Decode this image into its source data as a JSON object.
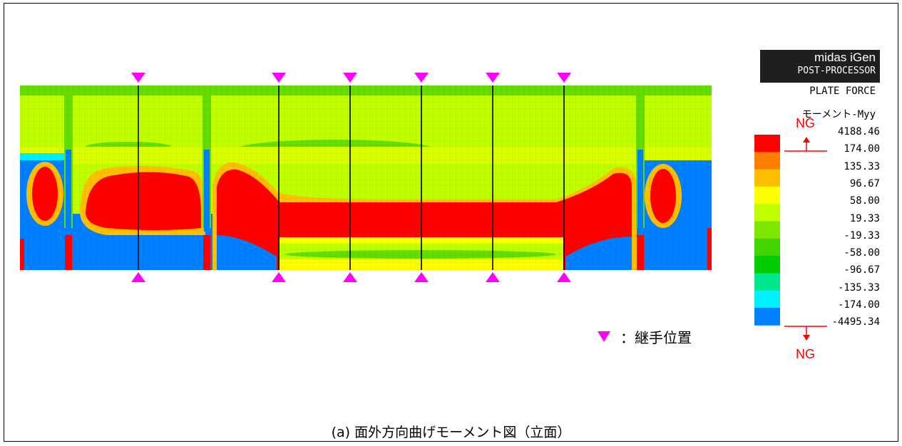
{
  "caption": "(a) 面外方向曲げモーメント図（立面）",
  "joint_legend": {
    "label": "：継手位置",
    "marker_color": "#ff00ff"
  },
  "postprocessor": {
    "brand": "midas iGen",
    "module": "POST-PROCESSOR",
    "title": "PLATE FORCE",
    "component": "モーメント-Myy"
  },
  "legend": {
    "ticks": [
      "4188.46",
      "174.00",
      "135.33",
      "96.67",
      "58.00",
      "19.33",
      "-19.33",
      "-58.00",
      "-96.67",
      "-135.33",
      "-174.00",
      "-4495.34"
    ],
    "colors": [
      "#ff0000",
      "#ff7f00",
      "#ffbf00",
      "#ffff00",
      "#bfff00",
      "#7fe600",
      "#40d400",
      "#00cc00",
      "#00e68c",
      "#00f0ff",
      "#0080ff"
    ],
    "ng_upper": "NG",
    "ng_lower": "NG",
    "ng_color": "#ff0000"
  },
  "contour_colors": {
    "red": "#ff0000",
    "orange": "#ff8000",
    "yellow": "#ffff00",
    "lightgreen": "#bfff00",
    "green": "#66dd00",
    "darkgreen": "#33cc00",
    "cyan": "#00f0ff",
    "blue": "#0080ff",
    "teal": "#00e68c"
  },
  "joints": {
    "count": 6,
    "marker": "triangle",
    "color": "#ff00ff"
  }
}
